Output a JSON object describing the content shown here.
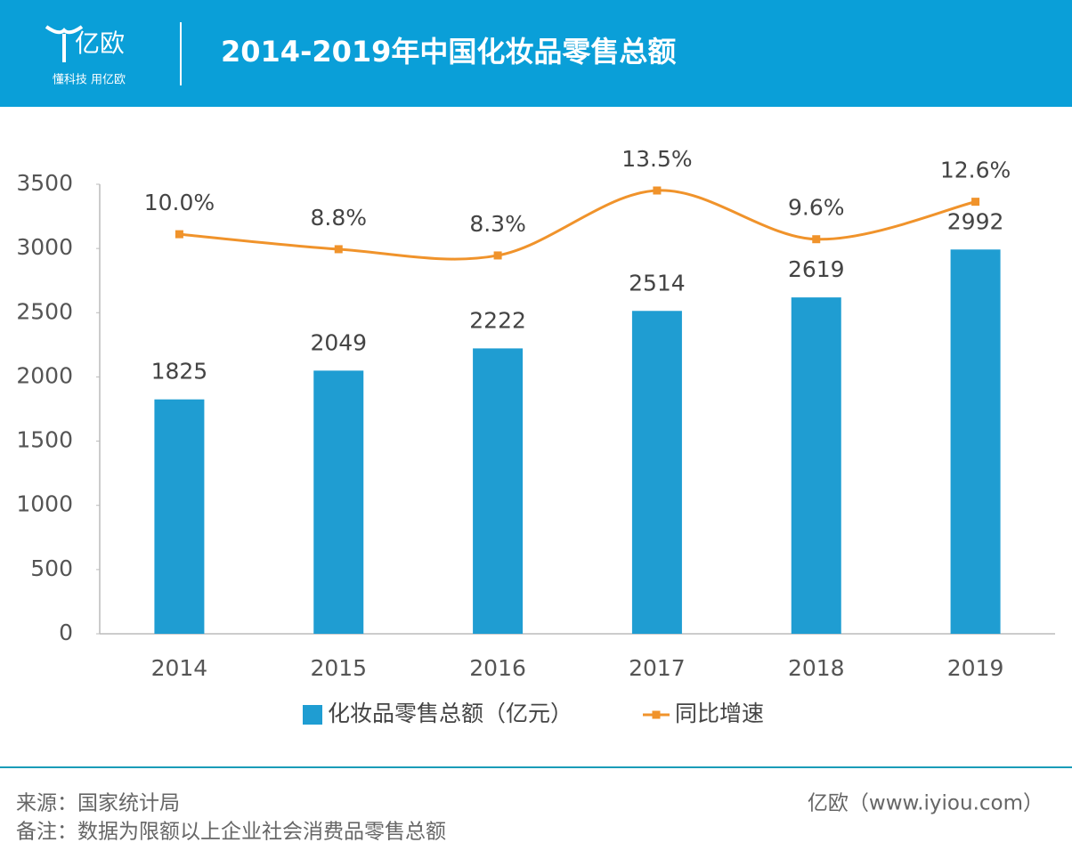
{
  "header": {
    "logo": "亿欧",
    "slogan": "懂科技 用亿欧"
  },
  "chart_data": {
    "type": "bar",
    "title": "2014-2019年中国化妆品零售总额",
    "categories": [
      "2014",
      "2015",
      "2016",
      "2017",
      "2018",
      "2019"
    ],
    "series": [
      {
        "name": "化妆品零售总额（亿元）",
        "color": "#1f9dd2",
        "values": [
          1825,
          2049,
          2222,
          2514,
          2619,
          2992
        ]
      },
      {
        "name": "同比增速",
        "type": "line",
        "axis": "y2",
        "color": "#f0932b",
        "values": [
          10.0,
          8.8,
          8.3,
          13.5,
          9.6,
          12.6
        ],
        "value_labels": [
          "10.0%",
          "8.8%",
          "8.3%",
          "13.5%",
          "9.6%",
          "12.6%"
        ]
      }
    ],
    "ylim": [
      0,
      3500
    ],
    "yticks": [
      0,
      500,
      1000,
      1500,
      2000,
      2500,
      3000,
      3500
    ],
    "y2lim": [
      -22,
      14
    ],
    "grid": false,
    "legend": "bottom"
  },
  "footer": {
    "source": "来源：国家统计局",
    "note": "备注：数据为限额以上企业社会消费品零售总额",
    "credit": "亿欧（www.iyiou.com）"
  }
}
